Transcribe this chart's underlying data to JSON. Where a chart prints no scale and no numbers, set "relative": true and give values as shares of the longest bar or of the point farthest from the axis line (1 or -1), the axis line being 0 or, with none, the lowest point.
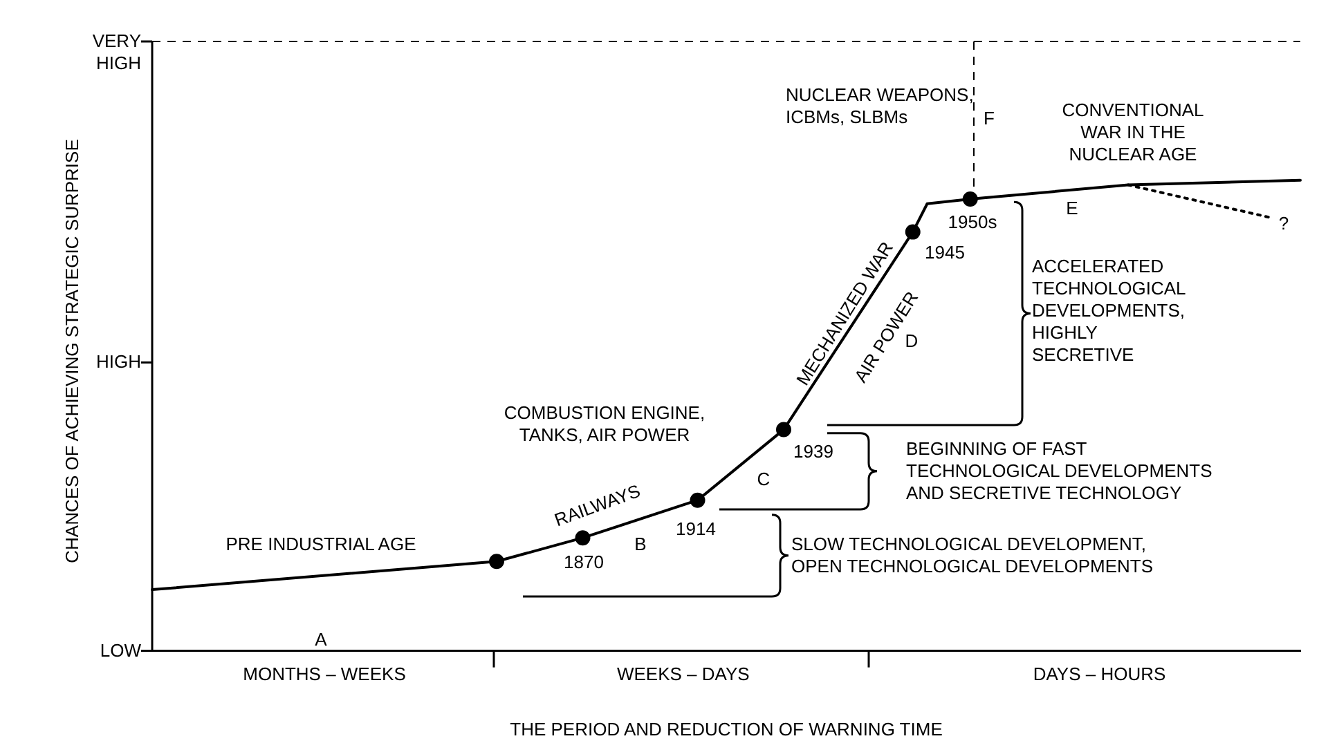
{
  "chart_data": {
    "type": "line",
    "relative": true,
    "xlabel": "THE PERIOD AND REDUCTION OF WARNING TIME",
    "ylabel": "CHANCES OF ACHIEVING STRATEGIC SURPRISE",
    "categories": [
      null,
      null,
      null,
      null,
      null,
      null,
      null,
      null,
      null,
      null,
      null,
      null,
      "MONTHS – WEEKS",
      null,
      null,
      null,
      null,
      null,
      null,
      null,
      null,
      null,
      null,
      null,
      null,
      null,
      null,
      null,
      null,
      null,
      null,
      null,
      null,
      null,
      null,
      null,
      null,
      "WEEKS – DAYS",
      null,
      null,
      null,
      null,
      null,
      null,
      null,
      null,
      null,
      null,
      null,
      null,
      null,
      null,
      null,
      null,
      null,
      null,
      null,
      null,
      null,
      null,
      null,
      null,
      null,
      null,
      null,
      null,
      "DAYS – HOURS",
      null,
      null,
      null,
      null,
      null,
      null,
      null,
      null,
      null,
      null,
      null,
      null,
      null,
      null
    ],
    "legend": false,
    "series": [
      {
        "type": "line",
        "color": "#000000",
        "marker": "none",
        "line_style": "solid",
        "values": [
          0.13,
          null,
          null,
          null,
          null,
          null,
          null,
          null,
          null,
          null,
          null,
          null,
          null,
          null,
          null,
          null,
          null,
          null,
          null,
          null,
          null,
          null,
          null,
          null,
          0.19,
          null,
          null,
          null,
          null,
          null,
          0.24,
          null,
          null,
          null,
          null,
          null,
          null,
          null,
          0.32,
          null,
          null,
          null,
          null,
          null,
          0.47,
          null,
          null,
          null,
          null,
          null,
          null,
          null,
          null,
          0.89,
          0.95,
          null,
          null,
          0.96,
          null,
          null,
          null,
          null,
          null,
          null,
          null,
          null,
          null,
          null,
          0.99,
          null,
          null,
          null,
          null,
          null,
          null,
          null,
          null,
          null,
          null,
          null,
          1
        ]
      },
      {
        "type": "line",
        "color": "#000000",
        "marker": "none",
        "line_style": "dotted",
        "values": [
          null,
          null,
          null,
          null,
          null,
          null,
          null,
          null,
          null,
          null,
          null,
          null,
          null,
          null,
          null,
          null,
          null,
          null,
          null,
          null,
          null,
          null,
          null,
          null,
          null,
          null,
          null,
          null,
          null,
          null,
          null,
          null,
          null,
          null,
          null,
          null,
          null,
          null,
          null,
          null,
          null,
          null,
          null,
          null,
          null,
          null,
          null,
          null,
          null,
          null,
          null,
          null,
          null,
          null,
          null,
          null,
          null,
          null,
          null,
          null,
          null,
          null,
          null,
          null,
          null,
          null,
          null,
          null,
          0.99,
          null,
          null,
          null,
          null,
          null,
          null,
          null,
          null,
          null,
          0.92,
          null,
          null
        ]
      },
      {
        "type": "scatter",
        "color": "#000000",
        "marker": "circle",
        "values": [
          null,
          null,
          null,
          null,
          null,
          null,
          null,
          null,
          null,
          null,
          null,
          null,
          null,
          null,
          null,
          null,
          null,
          null,
          null,
          null,
          null,
          null,
          null,
          null,
          0.19,
          null,
          null,
          null,
          null,
          null,
          0.24,
          null,
          null,
          null,
          null,
          null,
          null,
          null,
          0.32,
          null,
          null,
          null,
          null,
          null,
          0.47,
          null,
          null,
          null,
          null,
          null,
          null,
          null,
          null,
          0.89,
          null,
          null,
          null,
          0.96,
          null,
          null,
          null,
          null,
          null,
          null,
          null,
          null,
          null,
          null,
          null,
          null,
          null,
          null,
          null,
          null,
          null,
          null,
          null,
          null,
          null,
          null,
          null
        ]
      }
    ],
    "annotations": [
      "A",
      "B",
      "C",
      "D",
      "E",
      "F",
      "1870",
      "1914",
      "1939",
      "1945",
      "1950s",
      "PRE INDUSTRIAL AGE",
      "RAILWAYS",
      "COMBUSTION ENGINE,\nTANKS, AIR POWER",
      "MECHANIZED WAR",
      "AIR POWER",
      "NUCLEAR WEAPONS,\nICBMs, SLBMs",
      "CONVENTIONAL\nWAR IN THE\nNUCLEAR AGE",
      "?",
      "SLOW TECHNOLOGICAL DEVELOPMENT,\nOPEN TECHNOLOGICAL DEVELOPMENTS",
      "BEGINNING OF FAST\nTECHNOLOGICAL DEVELOPMENTS\nAND SECRETIVE TECHNOLOGY",
      "ACCELERATED\nTECHNOLOGICAL\nDEVELOPMENTS,\nHIGHLY\nSECRETIVE",
      "LOW",
      "HIGH",
      "VERY\nHIGH"
    ]
  }
}
